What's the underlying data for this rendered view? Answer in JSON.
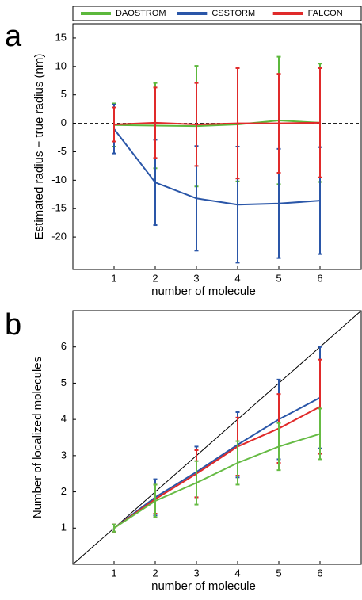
{
  "chart_data": [
    {
      "type": "line",
      "panel_label": "a",
      "x_label": "number of molecule",
      "y_label": "Estimated radius − true radius (nm)",
      "x": [
        1,
        2,
        3,
        4,
        5,
        6
      ],
      "xlim": [
        0,
        7
      ],
      "ylim": [
        -25.7,
        17.5
      ],
      "xticks": [
        1,
        2,
        3,
        4,
        5,
        6
      ],
      "yticks": [
        15,
        10,
        5,
        0,
        -5,
        -10,
        -15,
        -20
      ],
      "zero_line": true,
      "legend": "top",
      "series": [
        {
          "name": "DAOSTROM",
          "color": "#5cb83c",
          "values": [
            -0.3,
            -0.4,
            -0.5,
            -0.2,
            0.5,
            0.1
          ],
          "errors": [
            3.8,
            7.5,
            10.6,
            10,
            11.2,
            10.4
          ]
        },
        {
          "name": "CSSTORM",
          "color": "#2a56a8",
          "values": [
            -1,
            -10.4,
            -13.2,
            -14.3,
            -14.1,
            -13.6
          ],
          "errors": [
            4.3,
            7.5,
            9.2,
            10.2,
            9.6,
            9.4
          ]
        },
        {
          "name": "FALCON",
          "color": "#e02a2a",
          "values": [
            -0.2,
            0.1,
            -0.2,
            0,
            0,
            0.1
          ],
          "errors": [
            3,
            6.2,
            7.3,
            9.7,
            8.7,
            9.6
          ]
        }
      ]
    },
    {
      "type": "line",
      "panel_label": "b",
      "x_label": "number of molecule",
      "y_label": "Number of localized molecules",
      "x": [
        1,
        2,
        3,
        4,
        5,
        6
      ],
      "xlim": [
        0,
        7
      ],
      "ylim": [
        0,
        7
      ],
      "xticks": [
        1,
        2,
        3,
        4,
        5,
        6
      ],
      "yticks": [
        1,
        2,
        3,
        4,
        5,
        6
      ],
      "diagonal": true,
      "series": [
        {
          "color": "#2a56a8",
          "values": [
            1,
            1.85,
            2.55,
            3.3,
            4.0,
            4.6
          ],
          "errors": [
            0.1,
            0.5,
            0.7,
            0.9,
            1.1,
            1.4
          ]
        },
        {
          "color": "#e02a2a",
          "values": [
            1,
            1.8,
            2.5,
            3.25,
            3.75,
            4.35
          ],
          "errors": [
            0.1,
            0.4,
            0.65,
            0.8,
            0.95,
            1.3
          ]
        },
        {
          "color": "#66bb44",
          "values": [
            1,
            1.75,
            2.25,
            2.8,
            3.25,
            3.6
          ],
          "errors": [
            0.1,
            0.45,
            0.6,
            0.6,
            0.65,
            0.7
          ]
        }
      ]
    }
  ]
}
